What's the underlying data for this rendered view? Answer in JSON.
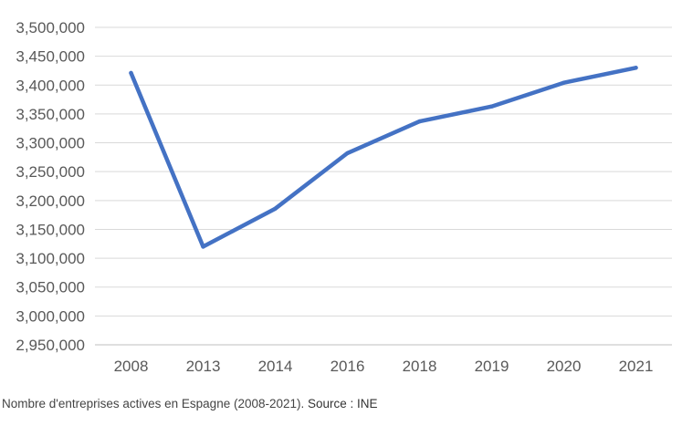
{
  "chart_data": {
    "type": "line",
    "title": "",
    "xlabel": "",
    "ylabel": "",
    "categories": [
      "2008",
      "2013",
      "2014",
      "2016",
      "2018",
      "2019",
      "2020",
      "2021"
    ],
    "series": [
      {
        "values": [
          3421000,
          3120000,
          3186000,
          3282000,
          3337000,
          3363000,
          3404000,
          3430000
        ]
      }
    ],
    "ylim": [
      2950000,
      3500000
    ],
    "yticks": [
      "2,950,000",
      "3,000,000",
      "3,050,000",
      "3,100,000",
      "3,150,000",
      "3,200,000",
      "3,250,000",
      "3,300,000",
      "3,350,000",
      "3,400,000",
      "3,450,000",
      "3,500,000"
    ],
    "grid": true,
    "legend": "none",
    "colors": {
      "line": "#4472c4",
      "grid": "#d9d9d9",
      "axis": "#bfbfbf",
      "tick_text": "#595959"
    }
  },
  "caption": {
    "text": "Nombre d'entreprises actives en Espagne (2008-2021).",
    "source_label": "Source : INE"
  }
}
